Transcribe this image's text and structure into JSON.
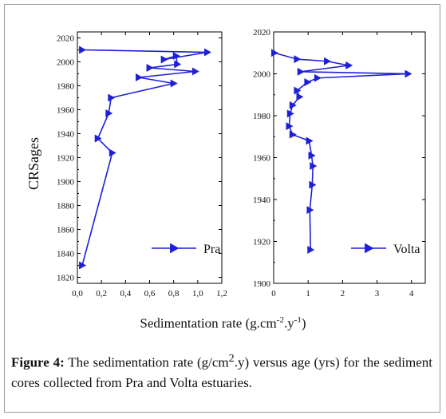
{
  "ylabel": "CRSages",
  "xlabel": {
    "text": "Sedimentation rate (g.cm",
    "sup1": "-2",
    "mid": ".y",
    "sup2": "-1",
    "end": ")"
  },
  "caption": {
    "label": "Figure 4:",
    "text_before": " The sedimentation rate (g/cm",
    "sup": "2",
    "text_after": ".y) versus age (yrs) for the sediment cores collected from Pra and Volta estuaries."
  },
  "chart_data": [
    {
      "type": "line",
      "legend": "Pra",
      "legend_position": "bottom-right",
      "color": "#1f1fd8",
      "xlim": [
        0.0,
        1.2
      ],
      "ylim": [
        1815,
        2025
      ],
      "x_ticks": [
        "0,0",
        "0,2",
        "0,4",
        "0,6",
        "0,8",
        "1,0",
        "1,2"
      ],
      "x_tick_values": [
        0.0,
        0.2,
        0.4,
        0.6,
        0.8,
        1.0,
        1.2
      ],
      "y_ticks": [
        "1820",
        "1840",
        "1860",
        "1880",
        "1900",
        "1920",
        "1940",
        "1960",
        "1980",
        "2000",
        "2020"
      ],
      "y_tick_values": [
        1820,
        1840,
        1860,
        1880,
        1900,
        1920,
        1940,
        1960,
        1980,
        2000,
        2020
      ],
      "points": [
        {
          "x": 0.04,
          "y": 2010
        },
        {
          "x": 1.08,
          "y": 2008
        },
        {
          "x": 0.72,
          "y": 2002
        },
        {
          "x": 0.82,
          "y": 2005
        },
        {
          "x": 0.83,
          "y": 1998
        },
        {
          "x": 0.6,
          "y": 1995
        },
        {
          "x": 0.98,
          "y": 1992
        },
        {
          "x": 0.51,
          "y": 1987
        },
        {
          "x": 0.8,
          "y": 1982
        },
        {
          "x": 0.28,
          "y": 1970
        },
        {
          "x": 0.26,
          "y": 1957
        },
        {
          "x": 0.17,
          "y": 1936
        },
        {
          "x": 0.29,
          "y": 1924
        },
        {
          "x": 0.04,
          "y": 1830
        }
      ]
    },
    {
      "type": "line",
      "legend": "Volta",
      "legend_position": "bottom-right",
      "color": "#1f1fd8",
      "xlim": [
        0,
        4.4
      ],
      "ylim": [
        1900,
        2020
      ],
      "x_ticks": [
        "0",
        "1",
        "2",
        "3",
        "4"
      ],
      "x_tick_values": [
        0,
        1,
        2,
        3,
        4
      ],
      "y_ticks": [
        "1900",
        "1920",
        "1940",
        "1960",
        "1980",
        "2000",
        "2020"
      ],
      "y_tick_values": [
        1900,
        1920,
        1940,
        1960,
        1980,
        2000,
        2020
      ],
      "points": [
        {
          "x": 0.02,
          "y": 2010
        },
        {
          "x": 0.68,
          "y": 2007
        },
        {
          "x": 1.55,
          "y": 2006
        },
        {
          "x": 2.18,
          "y": 2004
        },
        {
          "x": 0.78,
          "y": 2001
        },
        {
          "x": 3.9,
          "y": 2000
        },
        {
          "x": 1.27,
          "y": 1998
        },
        {
          "x": 0.98,
          "y": 1996
        },
        {
          "x": 0.68,
          "y": 1992
        },
        {
          "x": 0.75,
          "y": 1989
        },
        {
          "x": 0.55,
          "y": 1985
        },
        {
          "x": 0.48,
          "y": 1981
        },
        {
          "x": 0.45,
          "y": 1975
        },
        {
          "x": 0.55,
          "y": 1971
        },
        {
          "x": 1.03,
          "y": 1968
        },
        {
          "x": 1.1,
          "y": 1961
        },
        {
          "x": 1.14,
          "y": 1956
        },
        {
          "x": 1.12,
          "y": 1947
        },
        {
          "x": 1.05,
          "y": 1935
        },
        {
          "x": 1.07,
          "y": 1916
        }
      ]
    }
  ]
}
